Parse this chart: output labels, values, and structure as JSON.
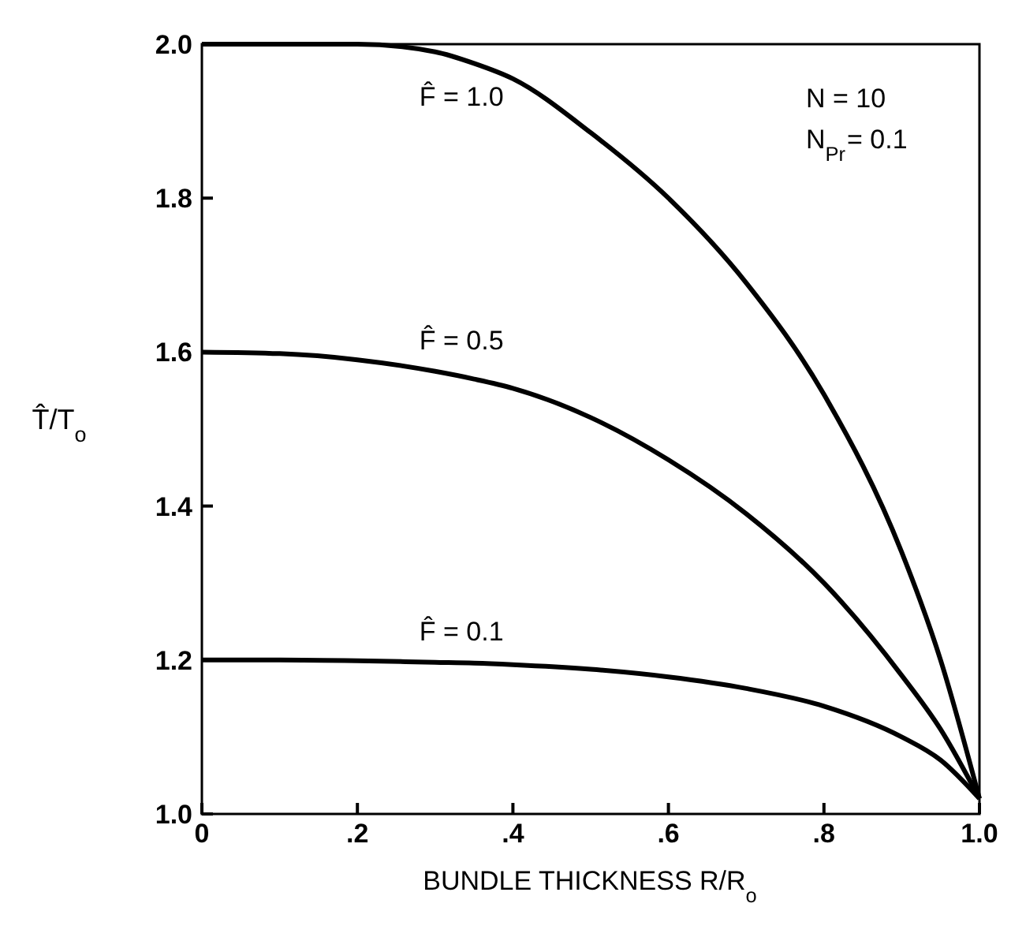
{
  "chart_data": {
    "type": "line",
    "xlabel": "BUNDLE THICKNESS R/R$_{o}$",
    "ylabel": "T̂/T$_{o}$",
    "x": [
      0,
      0.1,
      0.2,
      0.3,
      0.35,
      0.4,
      0.5,
      0.6,
      0.7,
      0.8,
      0.9,
      0.95,
      1.0
    ],
    "series": [
      {
        "color": "#000000",
        "values": [
          2.0,
          2.0,
          2.0,
          1.99,
          1.975,
          1.955,
          1.885,
          1.8,
          1.69,
          1.545,
          1.34,
          1.2,
          1.02
        ]
      },
      {
        "color": "#000000",
        "values": [
          1.6,
          1.598,
          1.59,
          1.575,
          1.565,
          1.553,
          1.515,
          1.46,
          1.39,
          1.3,
          1.18,
          1.11,
          1.02
        ]
      },
      {
        "color": "#000000",
        "values": [
          1.2,
          1.2,
          1.199,
          1.197,
          1.196,
          1.194,
          1.188,
          1.178,
          1.163,
          1.14,
          1.1,
          1.07,
          1.02
        ]
      }
    ],
    "xlim": [
      0,
      1
    ],
    "ylim": [
      1,
      2
    ],
    "xticks": [
      0,
      {
        "value": 0.2,
        "label": ".2"
      },
      {
        "value": 0.4,
        "label": ".4"
      },
      {
        "value": 0.6,
        "label": ".6"
      },
      {
        "value": 0.8,
        "label": ".8"
      },
      {
        "value": 1,
        "label": "1.0"
      }
    ],
    "yticks": [
      {
        "value": 1,
        "label": "1.0"
      },
      1.2,
      1.4,
      1.6,
      1.8,
      {
        "value": 2,
        "label": "2.0"
      }
    ],
    "grid": false,
    "line_style": "solid",
    "marker": "none",
    "annotations": [
      "F̂ = 1.0",
      "F̂ = 0.5",
      "F̂ = 0.1",
      "N = 10",
      "N$_{Pr}$= 0.1"
    ]
  }
}
